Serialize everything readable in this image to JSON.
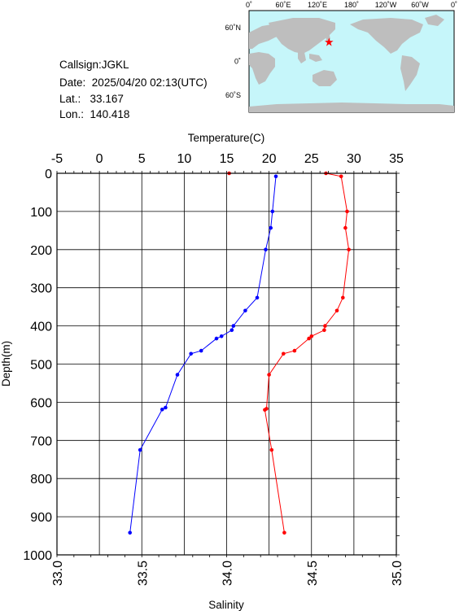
{
  "meta": {
    "callsign_label": "Callsign:",
    "callsign": "JGKL",
    "date_label": "Date:",
    "date": "2025/04/20 02:13(UTC)",
    "lat_label": "Lat.:",
    "lat": "33.167",
    "lon_label": "Lon.:",
    "lon": "140.418"
  },
  "map": {
    "top_labels": [
      "0˚",
      "60˚E",
      "120˚E",
      "180˚",
      "120˚W",
      "60˚W",
      "0˚"
    ],
    "lat_labels": [
      "60˚N",
      "0˚",
      "60˚S"
    ],
    "ocean_color": "#c6f6fa",
    "land_color": "#bebebe",
    "marker_color": "#ff0000",
    "marker_lat": 33.167,
    "marker_lon": 140.418
  },
  "chart_data": {
    "type": "line",
    "ylabel": "Depth(m)",
    "ylim": [
      0,
      1000
    ],
    "y_inverted": true,
    "y_ticks": [
      0,
      100,
      200,
      300,
      400,
      500,
      600,
      700,
      800,
      900,
      1000
    ],
    "grid": true,
    "top_axis": {
      "label": "Temperature(C)",
      "range": [
        -5,
        35
      ],
      "ticks": [
        -5,
        0,
        5,
        10,
        15,
        20,
        25,
        30,
        35
      ]
    },
    "bottom_axis": {
      "label": "Salinity",
      "range": [
        33.0,
        35.0
      ],
      "ticks": [
        "33.0",
        "33.5",
        "34.0",
        "34.5",
        "35.0"
      ]
    },
    "series": [
      {
        "axis": "top",
        "color": "#ff0000",
        "points": [
          [
            15.3,
            0
          ],
          [
            26.7,
            0
          ],
          [
            28.5,
            8
          ],
          [
            29.2,
            100
          ],
          [
            29.0,
            143
          ],
          [
            29.4,
            200
          ],
          [
            28.7,
            326
          ],
          [
            28.0,
            360
          ],
          [
            26.6,
            400
          ],
          [
            26.5,
            411
          ],
          [
            25.0,
            427
          ],
          [
            24.7,
            433
          ],
          [
            23.0,
            465
          ],
          [
            21.7,
            473
          ],
          [
            20.0,
            528
          ],
          [
            19.7,
            617
          ],
          [
            19.5,
            620
          ],
          [
            20.3,
            725
          ],
          [
            21.8,
            942
          ]
        ]
      },
      {
        "axis": "bottom",
        "color": "#0000ff",
        "points": [
          [
            34.29,
            8
          ],
          [
            34.27,
            100
          ],
          [
            34.26,
            143
          ],
          [
            34.23,
            200
          ],
          [
            34.18,
            326
          ],
          [
            34.11,
            360
          ],
          [
            34.04,
            400
          ],
          [
            34.03,
            411
          ],
          [
            33.97,
            427
          ],
          [
            33.94,
            433
          ],
          [
            33.85,
            465
          ],
          [
            33.79,
            473
          ],
          [
            33.71,
            528
          ],
          [
            33.64,
            614
          ],
          [
            33.62,
            619
          ],
          [
            33.49,
            725
          ],
          [
            33.43,
            942
          ]
        ]
      }
    ]
  }
}
